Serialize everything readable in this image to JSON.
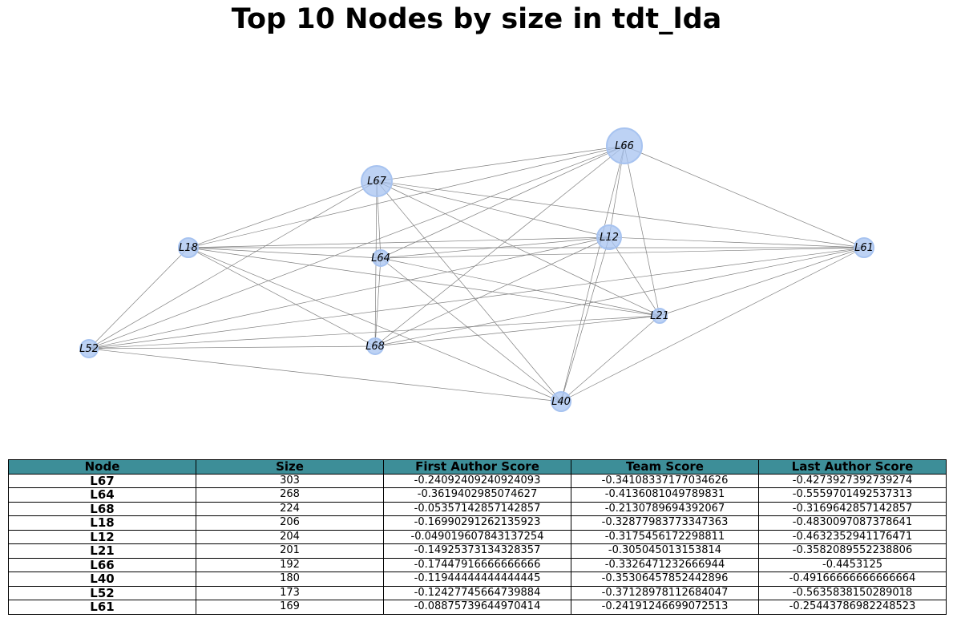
{
  "title": "Top 10 Nodes by size in tdt_lda",
  "colors": {
    "node_fill": "#a7c3f0",
    "node_stroke": "#a7c3f0",
    "edge": "#808080",
    "table_header": "#3d8e98"
  },
  "graph": {
    "nodes": [
      {
        "id": "L67",
        "size": 303
      },
      {
        "id": "L64",
        "size": 268
      },
      {
        "id": "L68",
        "size": 224
      },
      {
        "id": "L18",
        "size": 206
      },
      {
        "id": "L12",
        "size": 204
      },
      {
        "id": "L21",
        "size": 201
      },
      {
        "id": "L66",
        "size": 192
      },
      {
        "id": "L40",
        "size": 180
      },
      {
        "id": "L52",
        "size": 173
      },
      {
        "id": "L61",
        "size": 169
      }
    ],
    "edges": [
      [
        "L66",
        "L67"
      ],
      [
        "L66",
        "L18"
      ],
      [
        "L66",
        "L52"
      ],
      [
        "L66",
        "L64"
      ],
      [
        "L66",
        "L68"
      ],
      [
        "L66",
        "L12"
      ],
      [
        "L66",
        "L40"
      ],
      [
        "L66",
        "L21"
      ],
      [
        "L66",
        "L61"
      ],
      [
        "L67",
        "L18"
      ],
      [
        "L67",
        "L52"
      ],
      [
        "L67",
        "L64"
      ],
      [
        "L67",
        "L68"
      ],
      [
        "L67",
        "L12"
      ],
      [
        "L67",
        "L21"
      ],
      [
        "L67",
        "L61"
      ],
      [
        "L67",
        "L40"
      ],
      [
        "L18",
        "L12"
      ],
      [
        "L18",
        "L64"
      ],
      [
        "L18",
        "L61"
      ],
      [
        "L18",
        "L21"
      ],
      [
        "L18",
        "L68"
      ],
      [
        "L18",
        "L40"
      ],
      [
        "L18",
        "L52"
      ],
      [
        "L64",
        "L12"
      ],
      [
        "L64",
        "L61"
      ],
      [
        "L64",
        "L21"
      ],
      [
        "L64",
        "L40"
      ],
      [
        "L64",
        "L68"
      ],
      [
        "L12",
        "L52"
      ],
      [
        "L12",
        "L68"
      ],
      [
        "L12",
        "L40"
      ],
      [
        "L12",
        "L21"
      ],
      [
        "L12",
        "L61"
      ],
      [
        "L52",
        "L61"
      ],
      [
        "L52",
        "L21"
      ],
      [
        "L52",
        "L68"
      ],
      [
        "L52",
        "L40"
      ],
      [
        "L68",
        "L61"
      ],
      [
        "L68",
        "L21"
      ],
      [
        "L21",
        "L61"
      ],
      [
        "L21",
        "L40"
      ],
      [
        "L40",
        "L61"
      ]
    ]
  },
  "table": {
    "headers": [
      "Node",
      "Size",
      "First Author Score",
      "Team Score",
      "Last Author Score"
    ],
    "rows": [
      [
        "L67",
        "303",
        "-0.24092409240924093",
        "-0.34108337177034626",
        "-0.4273927392739274"
      ],
      [
        "L64",
        "268",
        "-0.3619402985074627",
        "-0.4136081049789831",
        "-0.5559701492537313"
      ],
      [
        "L68",
        "224",
        "-0.05357142857142857",
        "-0.2130789694392067",
        "-0.3169642857142857"
      ],
      [
        "L18",
        "206",
        "-0.16990291262135923",
        "-0.32877983773347363",
        "-0.4830097087378641"
      ],
      [
        "L12",
        "204",
        "-0.049019607843137254",
        "-0.3175456172298811",
        "-0.4632352941176471"
      ],
      [
        "L21",
        "201",
        "-0.14925373134328357",
        "-0.305045013153814",
        "-0.3582089552238806"
      ],
      [
        "L66",
        "192",
        "-0.17447916666666666",
        "-0.3326471232666944",
        "-0.4453125"
      ],
      [
        "L40",
        "180",
        "-0.11944444444444445",
        "-0.35306457852442896",
        "-0.49166666666666664"
      ],
      [
        "L52",
        "173",
        "-0.12427745664739884",
        "-0.37128978112684047",
        "-0.5635838150289018"
      ],
      [
        "L61",
        "169",
        "-0.08875739644970414",
        "-0.24191246699072513",
        "-0.25443786982248523"
      ]
    ]
  }
}
